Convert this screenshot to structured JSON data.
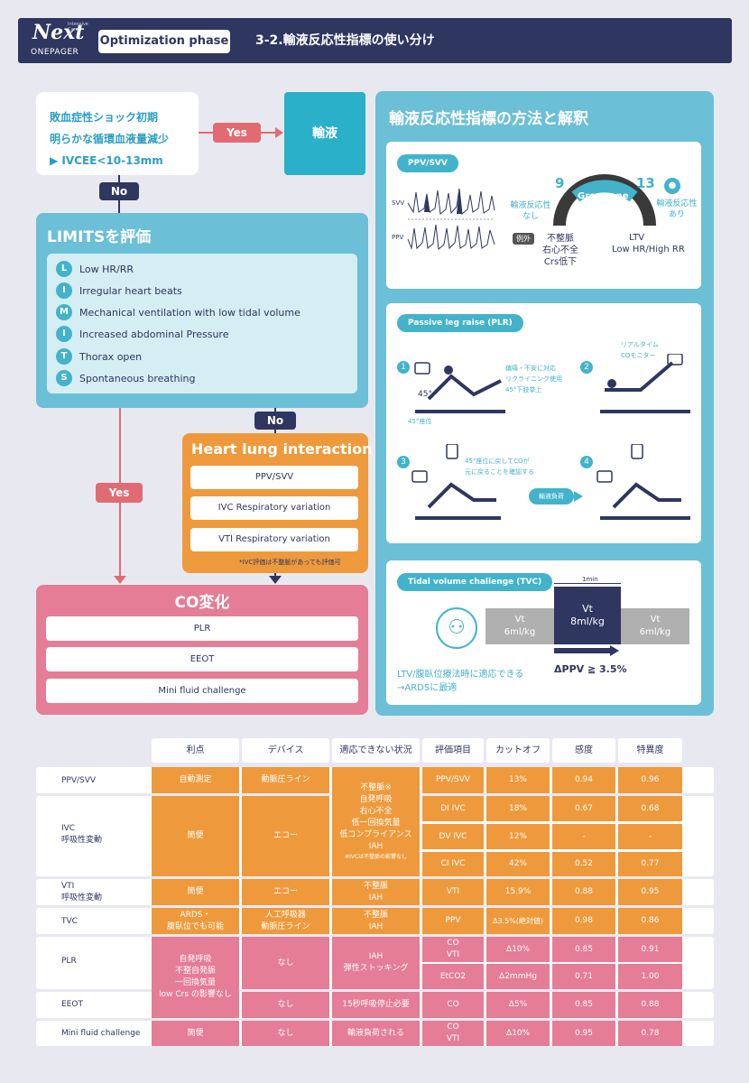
{
  "header": {
    "logo": "Next",
    "logo_small": "Intensive Care",
    "logo_sub": "ONEPAGER",
    "phase": "Optimization phase",
    "title": "3-2.輸液反応性指標の使い分け"
  },
  "flow": {
    "shock_lines": [
      "敗血症性ショック初期",
      "明らかな循環血液量減少",
      "▶ IVCEE<10-13mm"
    ],
    "yes": "Yes",
    "no": "No",
    "fluid": "輸液",
    "limits_title": "LIMITSを評価",
    "limits": [
      {
        "letter": "L",
        "text": "Low HR/RR"
      },
      {
        "letter": "I",
        "text": "Irregular heart beats"
      },
      {
        "letter": "M",
        "text": "Mechanical ventilation with low tidal volume"
      },
      {
        "letter": "I",
        "text": "Increased abdominal Pressure"
      },
      {
        "letter": "T",
        "text": "Thorax open"
      },
      {
        "letter": "S",
        "text": "Spontaneous breathing"
      }
    ],
    "hli_title": "Heart lung interaction",
    "hli_items": [
      "PPV/SVV",
      "IVC Respiratory variation",
      "VTI Respiratory variation"
    ],
    "hli_note": "*IVC評価は不整脈があっても評価可",
    "co_title": "CO変化",
    "co_items": [
      "PLR",
      "EEOT",
      "Mini fluid challenge"
    ]
  },
  "right": {
    "title": "輸液反応性指標の方法と解釈",
    "ppv": {
      "tag": "PPV/SVV",
      "svv": "SVV",
      "ppv": "PPV",
      "n9": "9",
      "n13": "13",
      "grey": "Grey zone",
      "left_label": "輸液反応性\nなし",
      "right_label": "輸液反応性\nあり",
      "exception": "例外",
      "exc_lines": [
        "不整脈",
        "右心不全",
        "Crs低下"
      ],
      "ltv": "LTV",
      "ltv2": "Low HR/High RR"
    },
    "plr": {
      "tag": "Passive leg raise (PLR)",
      "n1": "1",
      "n2": "2",
      "n3": "3",
      "n4": "4",
      "note1": [
        "鎮痛・不安に対応",
        "リクライニング使用",
        "45°下肢挙上"
      ],
      "angle": "45°",
      "angle2": "45°座位",
      "note2": [
        "リアルタイム",
        "COモニター"
      ],
      "note3": [
        "45°座位に戻してCOが",
        "元に戻ることを確認する"
      ],
      "arrow": "輸液負荷"
    },
    "tvc": {
      "tag": "Tidal volume challenge (TVC)",
      "min": "1min",
      "vt1": [
        "Vt",
        "6ml/kg"
      ],
      "vt2": [
        "Vt",
        "8ml/kg"
      ],
      "vt3": [
        "Vt",
        "6ml/kg"
      ],
      "criteria": "ΔPPV ≧ 3.5%",
      "note": [
        "LTV/腹臥位療法時に適応できる",
        "→ARDSに最適"
      ]
    }
  },
  "table": {
    "headers": [
      "利点",
      "デバイス",
      "適応できない状況",
      "評価項目",
      "カットオフ",
      "感度",
      "特異度"
    ],
    "rows": {
      "ppv": {
        "label": "PPV/SVV",
        "adv": "自動測定",
        "dev": "動脈圧ライン",
        "item": "PPV/SVV",
        "cut": "13%",
        "sens": "0.94",
        "spec": "0.96"
      },
      "ivc": {
        "label": [
          "IVC",
          "呼吸性変動"
        ],
        "adv": "簡便",
        "dev": "エコー",
        "items": [
          {
            "item": "DI IVC",
            "cut": "18%",
            "sens": "0.67",
            "spec": "0.68"
          },
          {
            "item": "DV IVC",
            "cut": "12%",
            "sens": "-",
            "spec": "-"
          },
          {
            "item": "CI IVC",
            "cut": "42%",
            "sens": "0.52",
            "spec": "0.77"
          }
        ]
      },
      "shared_contra": [
        "不整脈※",
        "自発呼吸",
        "右心不全",
        "低一回換気量",
        "低コンプライアンス",
        "IAH"
      ],
      "shared_note": "※IVCは不整脈の影響なし",
      "vti": {
        "label": [
          "VTI",
          "呼吸性変動"
        ],
        "adv": "簡便",
        "dev": "エコー",
        "contra": [
          "不整脈",
          "IAH"
        ],
        "item": "VTI",
        "cut": "15.9%",
        "sens": "0.88",
        "spec": "0.95"
      },
      "tvc": {
        "label": "TVC",
        "adv": [
          "ARDS・",
          "腹臥位でも可能"
        ],
        "dev": [
          "人工呼吸器",
          "動脈圧ライン"
        ],
        "contra": [
          "不整脈",
          "IAH"
        ],
        "item": "PPV",
        "cut": "Δ3.5%(絶対値)",
        "sens": "0.98",
        "spec": "0.86"
      },
      "plr": {
        "label": "PLR",
        "dev": "なし",
        "contra": [
          "IAH",
          "弾性ストッキング"
        ],
        "items": [
          {
            "item": [
              "CO",
              "VTI"
            ],
            "cut": "Δ10%",
            "sens": "0.85",
            "spec": "0.91"
          },
          {
            "item": [
              "EtCO2"
            ],
            "cut": "Δ2mmHg",
            "sens": "0.71",
            "spec": "1.00"
          }
        ]
      },
      "shared_adv": [
        "自発呼吸",
        "不整自発脈",
        "一回換気量",
        "low Crs の影響なし"
      ],
      "eeot": {
        "label": "EEOT",
        "dev": "なし",
        "contra": "15秒呼吸停止必要",
        "item": "CO",
        "cut": "Δ5%",
        "sens": "0.85",
        "spec": "0.88"
      },
      "mfc": {
        "label": "Mini fluid challenge",
        "adv": "簡便",
        "dev": "なし",
        "contra": "輸液負荷される",
        "item": [
          "CO",
          "VTI"
        ],
        "cut": "Δ10%",
        "sens": "0.95",
        "spec": "0.78"
      }
    }
  }
}
